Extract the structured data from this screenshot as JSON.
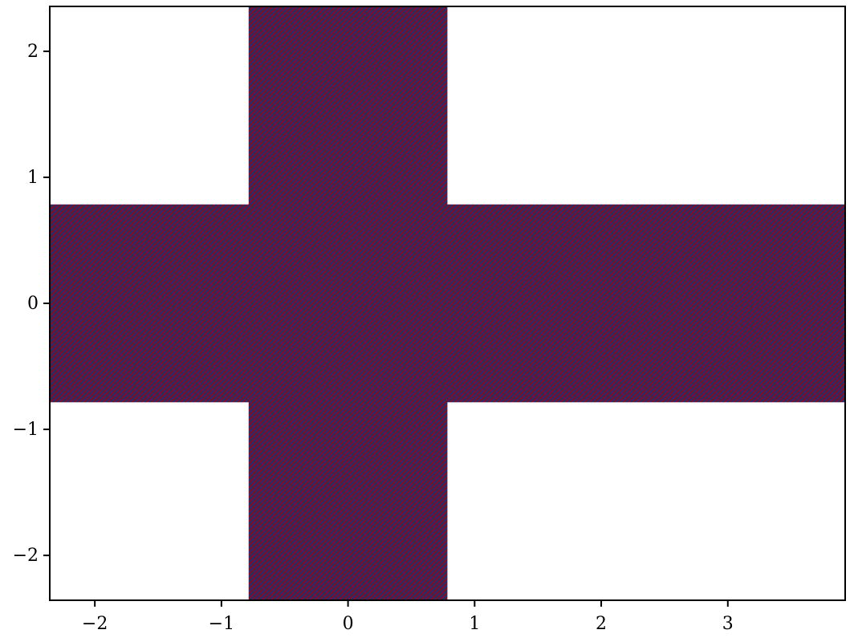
{
  "chart_data": {
    "type": "heatmap",
    "title": "",
    "xlabel": "",
    "ylabel": "",
    "xlim": [
      -2.356,
      3.927
    ],
    "ylim": [
      -2.356,
      2.356
    ],
    "x_ticks": [
      -2,
      -1,
      0,
      1,
      2,
      3
    ],
    "y_ticks": [
      -2,
      -1,
      0,
      1,
      2
    ],
    "x_tick_labels": [
      "−2",
      "−1",
      "0",
      "1",
      "2",
      "3"
    ],
    "y_tick_labels": [
      "−2",
      "−1",
      "0",
      "1",
      "2"
    ],
    "grid": false,
    "regions": [
      {
        "name": "vertical-bar",
        "x": [
          -0.785,
          0.785
        ],
        "y": [
          -2.356,
          2.356
        ]
      },
      {
        "name": "horizontal-bar",
        "x": [
          -2.356,
          3.927
        ],
        "y": [
          -0.785,
          0.785
        ]
      }
    ],
    "colors": {
      "positive": "#8b0a1c",
      "negative": "#12357a",
      "empty": "#ffffff"
    }
  }
}
